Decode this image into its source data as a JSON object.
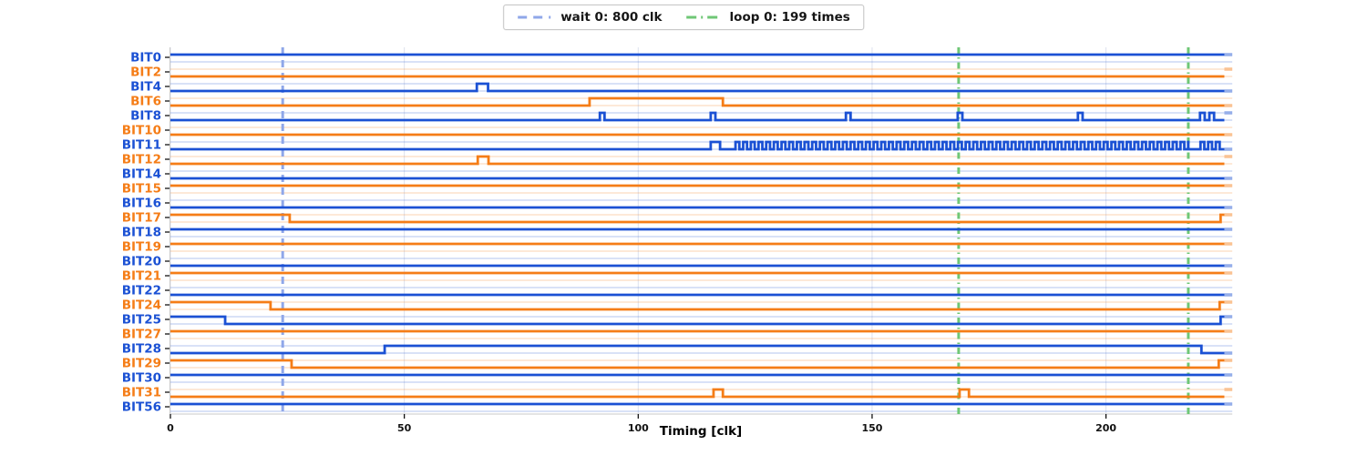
{
  "chart_data": {
    "type": "line",
    "subtype": "digital-timing-waveform",
    "title": "",
    "xlabel": "Timing [clk]",
    "ylabel": "",
    "x_ticks": [
      0,
      50,
      100,
      150,
      200
    ],
    "xlim": [
      0,
      227
    ],
    "trace_end_clk": 225.3,
    "rail_end_clk": 227.0,
    "grid": "vertical-at-x-ticks",
    "legend_position": "top-center-outside",
    "legend": [
      {
        "label": "wait 0: 800 clk",
        "color": "#8fa7e9",
        "style": "dashed"
      },
      {
        "label": "loop 0: 199 times",
        "color": "#6fc776",
        "style": "dashdot"
      }
    ],
    "markers": {
      "wait_lines": [
        {
          "clk": 24.0
        }
      ],
      "loop_lines": [
        {
          "clk": 168.5
        },
        {
          "clk": 217.6
        }
      ]
    },
    "colors": {
      "blue": "#1b51d4",
      "orange": "#f57d17",
      "grid": "#dde2ee",
      "spine": "#c9c9c9",
      "tick_text": "#111111",
      "wait_line": "#8fa7e9",
      "loop_line": "#6fc776"
    },
    "signals": [
      {
        "name": "BIT0",
        "color": "blue",
        "base": 1,
        "transitions": [],
        "ext": 1
      },
      {
        "name": "BIT2",
        "color": "orange",
        "base": 0,
        "transitions": [],
        "ext": 1
      },
      {
        "name": "BIT4",
        "color": "blue",
        "base": 0,
        "transitions": [
          [
            65.5,
            1
          ],
          [
            67.9,
            0
          ]
        ],
        "ext": 0
      },
      {
        "name": "BIT6",
        "color": "orange",
        "base": 0,
        "transitions": [
          [
            89.6,
            1
          ],
          [
            118.1,
            0
          ]
        ],
        "ext": 0
      },
      {
        "name": "BIT8",
        "color": "blue",
        "base": 0,
        "transitions": [
          [
            91.8,
            1
          ],
          [
            92.8,
            0
          ],
          [
            115.5,
            1
          ],
          [
            116.5,
            0
          ],
          [
            144.4,
            1
          ],
          [
            145.4,
            0
          ],
          [
            168.3,
            1
          ],
          [
            169.3,
            0
          ],
          [
            194.0,
            1
          ],
          [
            195.0,
            0
          ],
          [
            220.1,
            1
          ],
          [
            221.1,
            0
          ],
          [
            222.1,
            1
          ],
          [
            223.1,
            0
          ]
        ],
        "ext": 1
      },
      {
        "name": "BIT10",
        "color": "orange",
        "base": 0,
        "transitions": [],
        "ext": 0
      },
      {
        "name": "BIT11",
        "color": "blue",
        "base": 0,
        "transitions": [
          [
            115.5,
            1
          ],
          [
            117.5,
            0
          ]
        ],
        "osc": [
          {
            "from": 120.8,
            "to": 217.6,
            "period": 1.64
          },
          {
            "from": 220.2,
            "to": 224.8,
            "period": 1.64
          }
        ],
        "ext": 0
      },
      {
        "name": "BIT12",
        "color": "orange",
        "base": 0,
        "transitions": [
          [
            65.7,
            1
          ],
          [
            68.0,
            0
          ]
        ],
        "ext": 1
      },
      {
        "name": "BIT14",
        "color": "blue",
        "base": 0,
        "transitions": [],
        "ext": 0
      },
      {
        "name": "BIT15",
        "color": "orange",
        "base": 1,
        "transitions": [],
        "ext": 1
      },
      {
        "name": "BIT16",
        "color": "blue",
        "base": 0,
        "transitions": [],
        "ext": 0
      },
      {
        "name": "BIT17",
        "color": "orange",
        "base": 1,
        "transitions": [
          [
            25.5,
            0
          ],
          [
            224.5,
            1
          ]
        ],
        "ext": 1
      },
      {
        "name": "BIT18",
        "color": "blue",
        "base": 1,
        "transitions": [],
        "ext": 1
      },
      {
        "name": "BIT19",
        "color": "orange",
        "base": 1,
        "transitions": [],
        "ext": 1
      },
      {
        "name": "BIT20",
        "color": "blue",
        "base": 0,
        "transitions": [],
        "ext": 0
      },
      {
        "name": "BIT21",
        "color": "orange",
        "base": 1,
        "transitions": [],
        "ext": 1
      },
      {
        "name": "BIT22",
        "color": "blue",
        "base": 0,
        "transitions": [],
        "ext": 0
      },
      {
        "name": "BIT24",
        "color": "orange",
        "base": 1,
        "transitions": [
          [
            21.4,
            0
          ],
          [
            224.3,
            1
          ]
        ],
        "ext": 1
      },
      {
        "name": "BIT25",
        "color": "blue",
        "base": 1,
        "transitions": [
          [
            11.7,
            0
          ],
          [
            224.5,
            1
          ]
        ],
        "ext": 1
      },
      {
        "name": "BIT27",
        "color": "orange",
        "base": 1,
        "transitions": [],
        "ext": 1
      },
      {
        "name": "BIT28",
        "color": "blue",
        "base": 0,
        "transitions": [
          [
            45.8,
            1
          ],
          [
            220.4,
            0
          ]
        ],
        "ext": 0
      },
      {
        "name": "BIT29",
        "color": "orange",
        "base": 1,
        "transitions": [
          [
            25.9,
            0
          ],
          [
            224.1,
            1
          ]
        ],
        "ext": 1
      },
      {
        "name": "BIT30",
        "color": "blue",
        "base": 1,
        "transitions": [],
        "ext": 1
      },
      {
        "name": "BIT31",
        "color": "orange",
        "base": 0,
        "transitions": [
          [
            116.1,
            1
          ],
          [
            118.1,
            0
          ],
          [
            168.7,
            1
          ],
          [
            170.7,
            0
          ]
        ],
        "ext": 1
      },
      {
        "name": "BIT56",
        "color": "blue",
        "base": 1,
        "transitions": [],
        "ext": 1
      }
    ]
  }
}
